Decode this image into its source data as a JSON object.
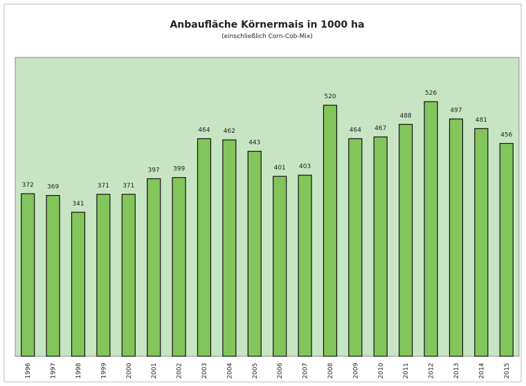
{
  "chart_data": {
    "type": "bar",
    "title": "Anbaufläche Körnermais in 1000 ha",
    "subtitle": "(einschließlich Corn-Cob-Mix)",
    "categories": [
      "1996",
      "1997",
      "1998",
      "1999",
      "2000",
      "2001",
      "2002",
      "2003",
      "2004",
      "2005",
      "2006",
      "2007",
      "2008",
      "2009",
      "2010",
      "2011",
      "2012",
      "2013",
      "2014",
      "2015"
    ],
    "values": [
      372,
      369,
      341,
      371,
      371,
      397,
      399,
      464,
      462,
      443,
      401,
      403,
      520,
      464,
      467,
      488,
      526,
      497,
      481,
      456
    ],
    "color": "#82c55a",
    "ylim": [
      100,
      600
    ]
  }
}
